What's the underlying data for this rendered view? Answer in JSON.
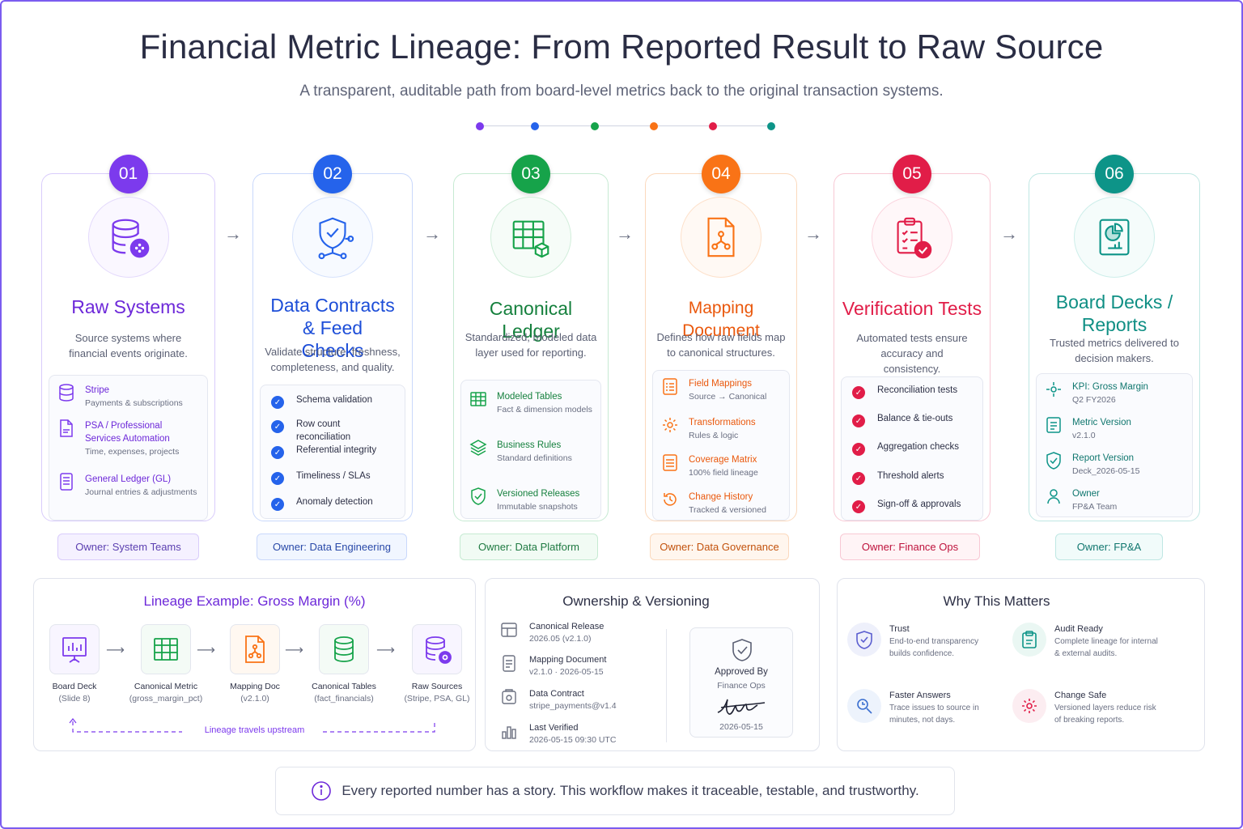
{
  "title": "Financial Metric Lineage: From Reported Result to Raw Source",
  "subtitle": "A transparent, auditable path from board-level metrics back to the original transaction systems.",
  "colors": {
    "purple": "#7c3aed",
    "blue": "#2563eb",
    "green": "#16a34a",
    "orange": "#f97316",
    "pink": "#e11d48",
    "teal": "#0d9488"
  },
  "stages": [
    {
      "num": "01",
      "title": "Raw Systems",
      "desc": "Source systems where financial events originate.",
      "items": [
        {
          "label": "Stripe",
          "sub": "Payments & subscriptions",
          "icon": "database-icon"
        },
        {
          "label": "PSA / Professional Services Automation",
          "sub": "Time, expenses, projects",
          "icon": "document-icon"
        },
        {
          "label": "General Ledger (GL)",
          "sub": "Journal entries & adjustments",
          "icon": "ledger-icon"
        }
      ],
      "owner": "Owner: System Teams"
    },
    {
      "num": "02",
      "title": "Data Contracts & Feed Checks",
      "desc": "Validate structure, freshness, completeness, and quality.",
      "items": [
        "Schema validation",
        "Row count reconciliation",
        "Referential integrity",
        "Timeliness / SLAs",
        "Anomaly detection"
      ],
      "owner": "Owner: Data Engineering"
    },
    {
      "num": "03",
      "title": "Canonical Ledger",
      "desc": "Standardized, modeled data layer used for reporting.",
      "items": [
        {
          "label": "Modeled Tables",
          "sub": "Fact & dimension models",
          "icon": "table-icon"
        },
        {
          "label": "Business Rules",
          "sub": "Standard definitions",
          "icon": "layers-icon"
        },
        {
          "label": "Versioned Releases",
          "sub": "Immutable snapshots",
          "icon": "shield-check-icon"
        }
      ],
      "owner": "Owner: Data Platform"
    },
    {
      "num": "04",
      "title": "Mapping Document",
      "desc": "Defines how raw fields map to canonical structures.",
      "items": [
        {
          "label": "Field Mappings",
          "sub": "Source → Canonical",
          "icon": "list-icon"
        },
        {
          "label": "Transformations",
          "sub": "Rules & logic",
          "icon": "gear-icon"
        },
        {
          "label": "Coverage Matrix",
          "sub": "100% field lineage",
          "icon": "matrix-icon"
        },
        {
          "label": "Change History",
          "sub": "Tracked & versioned",
          "icon": "history-icon"
        }
      ],
      "owner": "Owner: Data Governance"
    },
    {
      "num": "05",
      "title": "Verification Tests",
      "desc": "Automated tests ensure accuracy and consistency.",
      "items": [
        "Reconciliation tests",
        "Balance & tie-outs",
        "Aggregation checks",
        "Threshold alerts",
        "Sign-off & approvals"
      ],
      "owner": "Owner: Finance Ops"
    },
    {
      "num": "06",
      "title": "Board Decks / Reports",
      "desc": "Trusted metrics delivered to decision makers.",
      "items": [
        {
          "label": "KPI: Gross Margin",
          "sub": "Q2 FY2026",
          "icon": "kpi-icon"
        },
        {
          "label": "Metric Version",
          "sub": "v2.1.0",
          "icon": "doc-version-icon"
        },
        {
          "label": "Report Version",
          "sub": "Deck_2026-05-15",
          "icon": "shield-icon"
        },
        {
          "label": "Owner",
          "sub": "FP&A Team",
          "icon": "user-icon"
        }
      ],
      "owner": "Owner: FP&A"
    }
  ],
  "lineage": {
    "title": "Lineage Example: Gross Margin (%)",
    "nodes": [
      {
        "label": "Board Deck",
        "sub": "(Slide 8)"
      },
      {
        "label": "Canonical Metric",
        "sub": "(gross_margin_pct)"
      },
      {
        "label": "Mapping Doc",
        "sub": "(v2.1.0)"
      },
      {
        "label": "Canonical Tables",
        "sub": "(fact_financials)"
      },
      {
        "label": "Raw Sources",
        "sub": "(Stripe, PSA, GL)"
      }
    ],
    "note": "Lineage travels upstream"
  },
  "ownership": {
    "title": "Ownership & Versioning",
    "items": [
      {
        "label": "Canonical Release",
        "sub": "2026.05 (v2.1.0)"
      },
      {
        "label": "Mapping Document",
        "sub": "v2.1.0 · 2026-05-15"
      },
      {
        "label": "Data Contract",
        "sub": "stripe_payments@v1.4"
      },
      {
        "label": "Last Verified",
        "sub": "2026-05-15 09:30 UTC"
      }
    ],
    "approved_label": "Approved By",
    "approved_by": "Finance Ops",
    "approved_date": "2026-05-15"
  },
  "why": {
    "title": "Why This Matters",
    "items": [
      {
        "label": "Trust",
        "sub": "End-to-end transparency builds confidence."
      },
      {
        "label": "Audit Ready",
        "sub": "Complete lineage for internal & external audits."
      },
      {
        "label": "Faster Answers",
        "sub": "Trace issues to source in minutes, not days."
      },
      {
        "label": "Change Safe",
        "sub": "Versioned layers reduce risk of breaking reports."
      }
    ]
  },
  "footer": "Every reported number has a story. This workflow makes it traceable, testable, and trustworthy."
}
